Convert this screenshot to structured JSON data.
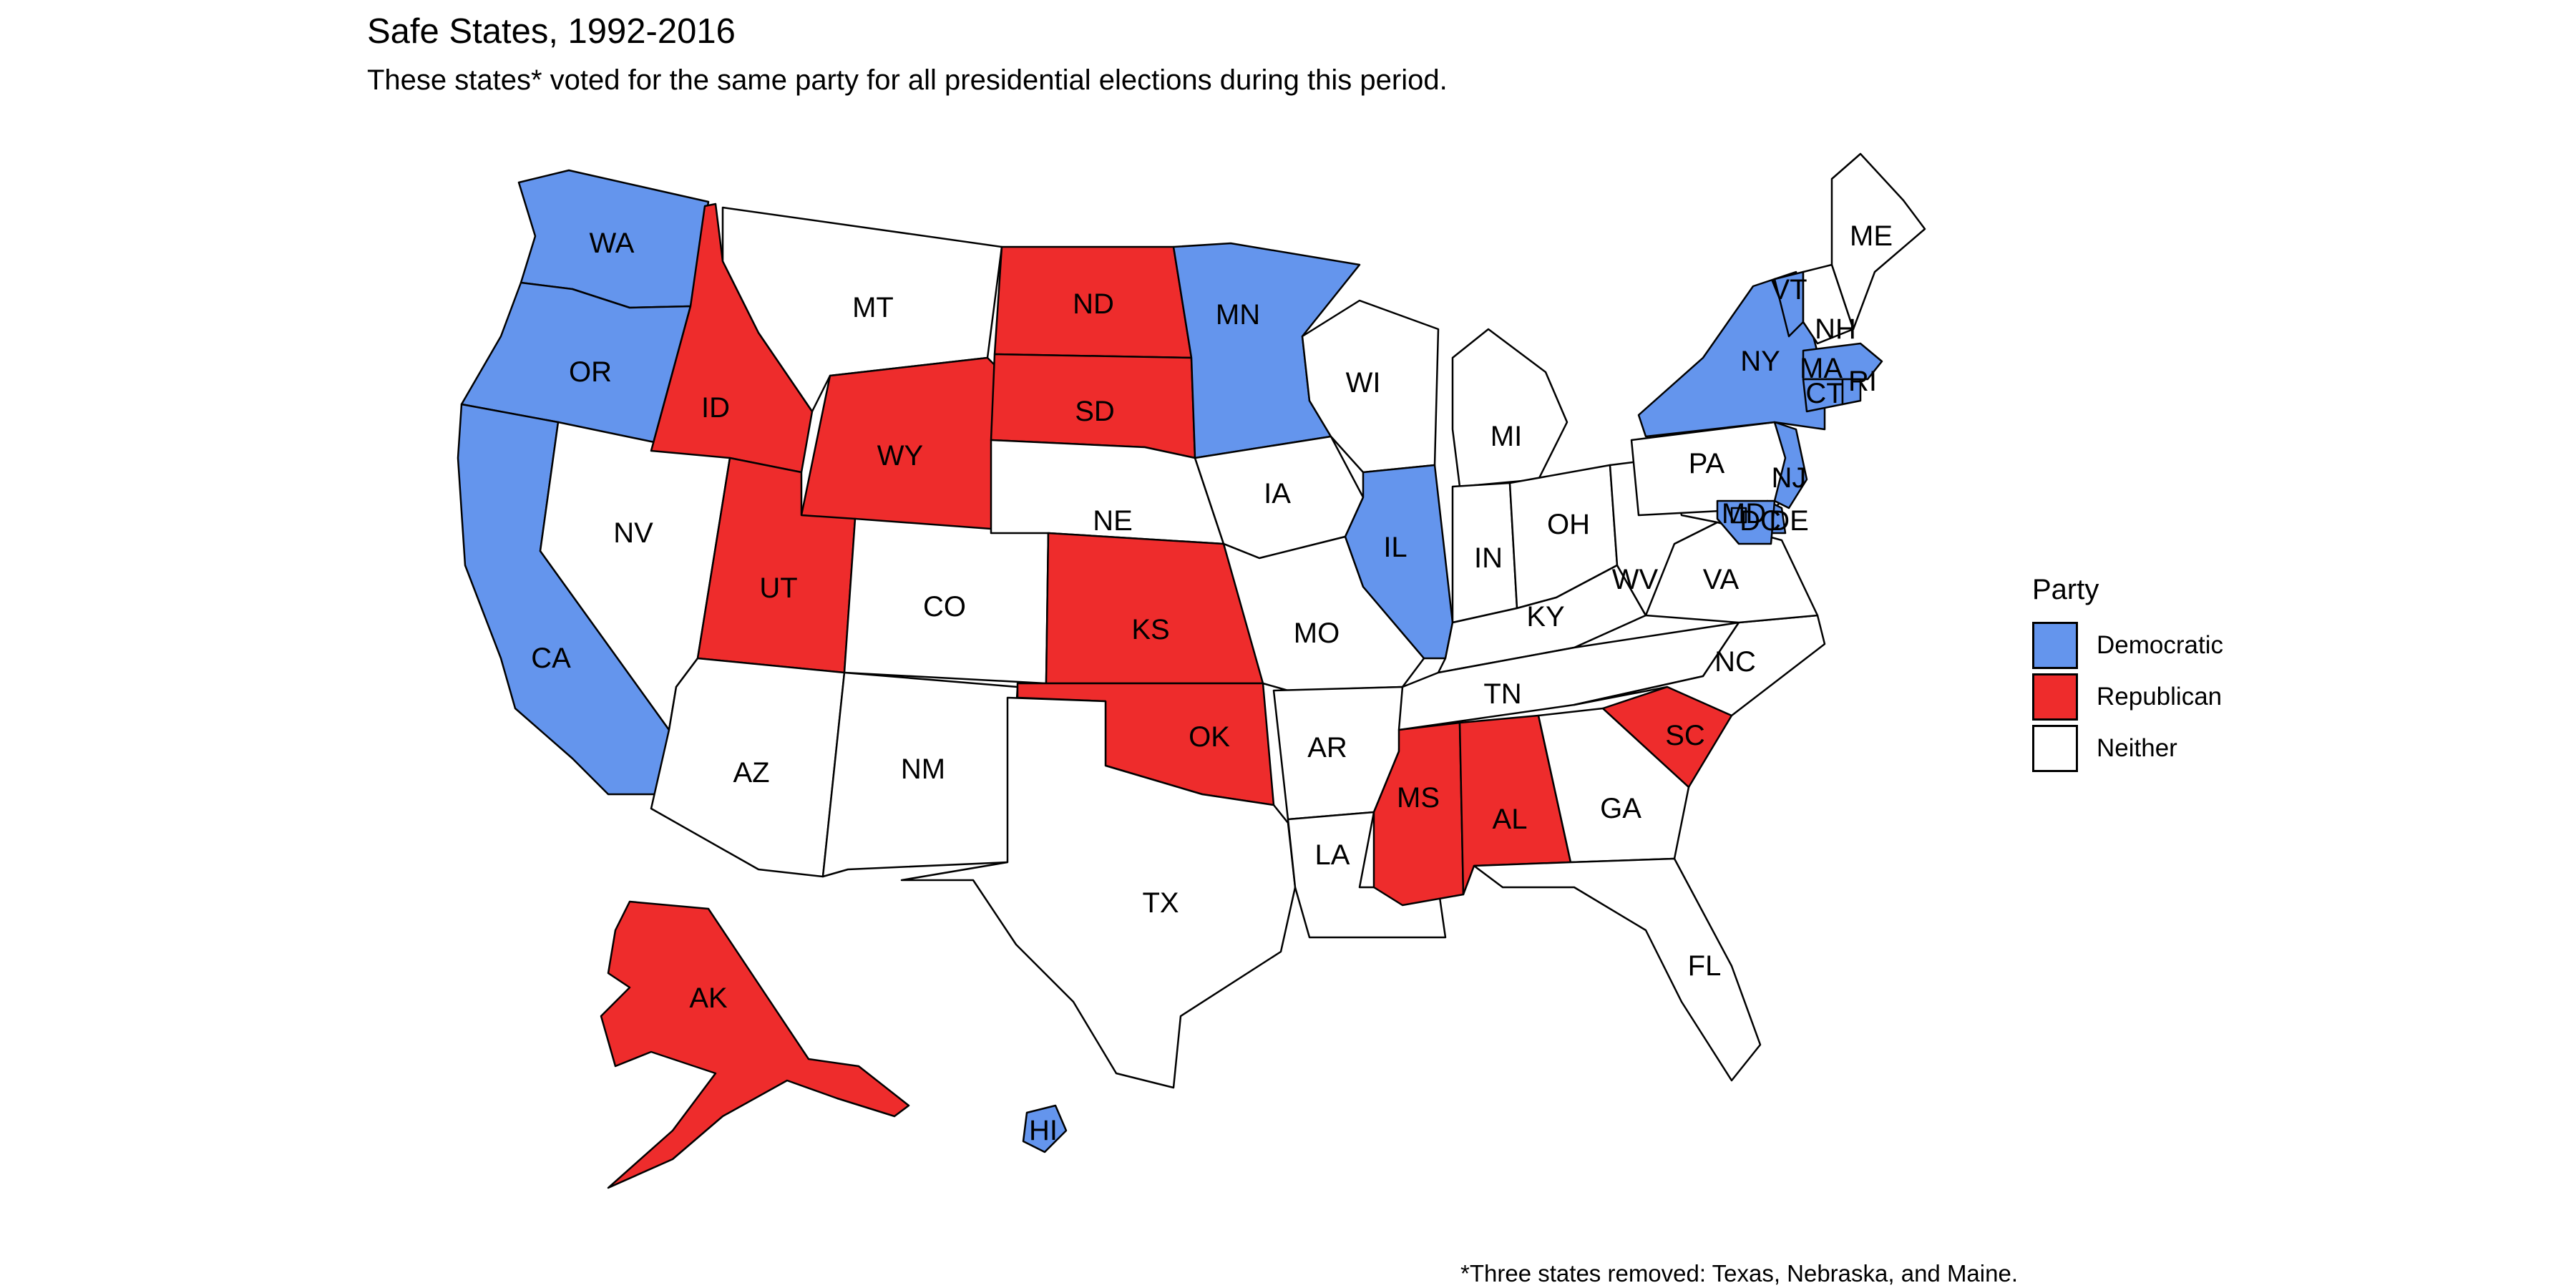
{
  "title": "Safe States, 1992-2016",
  "subtitle": "These states* voted for the same party for all presidential elections during this period.",
  "caption": "*Three states removed: Texas, Nebraska, and Maine.",
  "legend": {
    "title": "Party",
    "items": [
      {
        "label": "Democratic",
        "color": "#6495ed"
      },
      {
        "label": "Republican",
        "color": "#ee2c2c"
      },
      {
        "label": "Neither",
        "color": "#ffffff"
      }
    ]
  },
  "colors": {
    "Democratic": "#6495ed",
    "Republican": "#ee2c2c",
    "Neither": "#ffffff"
  },
  "states": [
    {
      "abbr": "WA",
      "party": "Democratic"
    },
    {
      "abbr": "OR",
      "party": "Democratic"
    },
    {
      "abbr": "CA",
      "party": "Democratic"
    },
    {
      "abbr": "NV",
      "party": "Neither"
    },
    {
      "abbr": "ID",
      "party": "Republican"
    },
    {
      "abbr": "MT",
      "party": "Neither"
    },
    {
      "abbr": "WY",
      "party": "Republican"
    },
    {
      "abbr": "UT",
      "party": "Republican"
    },
    {
      "abbr": "AZ",
      "party": "Neither"
    },
    {
      "abbr": "CO",
      "party": "Neither"
    },
    {
      "abbr": "NM",
      "party": "Neither"
    },
    {
      "abbr": "ND",
      "party": "Republican"
    },
    {
      "abbr": "SD",
      "party": "Republican"
    },
    {
      "abbr": "NE",
      "party": "Neither"
    },
    {
      "abbr": "KS",
      "party": "Republican"
    },
    {
      "abbr": "OK",
      "party": "Republican"
    },
    {
      "abbr": "TX",
      "party": "Neither"
    },
    {
      "abbr": "MN",
      "party": "Democratic"
    },
    {
      "abbr": "IA",
      "party": "Neither"
    },
    {
      "abbr": "MO",
      "party": "Neither"
    },
    {
      "abbr": "AR",
      "party": "Neither"
    },
    {
      "abbr": "LA",
      "party": "Neither"
    },
    {
      "abbr": "WI",
      "party": "Neither"
    },
    {
      "abbr": "IL",
      "party": "Democratic"
    },
    {
      "abbr": "MI",
      "party": "Neither"
    },
    {
      "abbr": "IN",
      "party": "Neither"
    },
    {
      "abbr": "OH",
      "party": "Neither"
    },
    {
      "abbr": "KY",
      "party": "Neither"
    },
    {
      "abbr": "TN",
      "party": "Neither"
    },
    {
      "abbr": "MS",
      "party": "Republican"
    },
    {
      "abbr": "AL",
      "party": "Republican"
    },
    {
      "abbr": "GA",
      "party": "Neither"
    },
    {
      "abbr": "FL",
      "party": "Neither"
    },
    {
      "abbr": "SC",
      "party": "Republican"
    },
    {
      "abbr": "NC",
      "party": "Neither"
    },
    {
      "abbr": "VA",
      "party": "Neither"
    },
    {
      "abbr": "WV",
      "party": "Neither"
    },
    {
      "abbr": "PA",
      "party": "Neither"
    },
    {
      "abbr": "NY",
      "party": "Democratic"
    },
    {
      "abbr": "VT",
      "party": "Democratic"
    },
    {
      "abbr": "NH",
      "party": "Neither"
    },
    {
      "abbr": "ME",
      "party": "Neither"
    },
    {
      "abbr": "MA",
      "party": "Democratic"
    },
    {
      "abbr": "CT",
      "party": "Democratic"
    },
    {
      "abbr": "RI",
      "party": "Democratic"
    },
    {
      "abbr": "NJ",
      "party": "Democratic"
    },
    {
      "abbr": "DE",
      "party": "Democratic"
    },
    {
      "abbr": "MD",
      "party": "Democratic"
    },
    {
      "abbr": "DC",
      "party": "Democratic"
    },
    {
      "abbr": "AK",
      "party": "Republican"
    },
    {
      "abbr": "HI",
      "party": "Democratic"
    }
  ]
}
